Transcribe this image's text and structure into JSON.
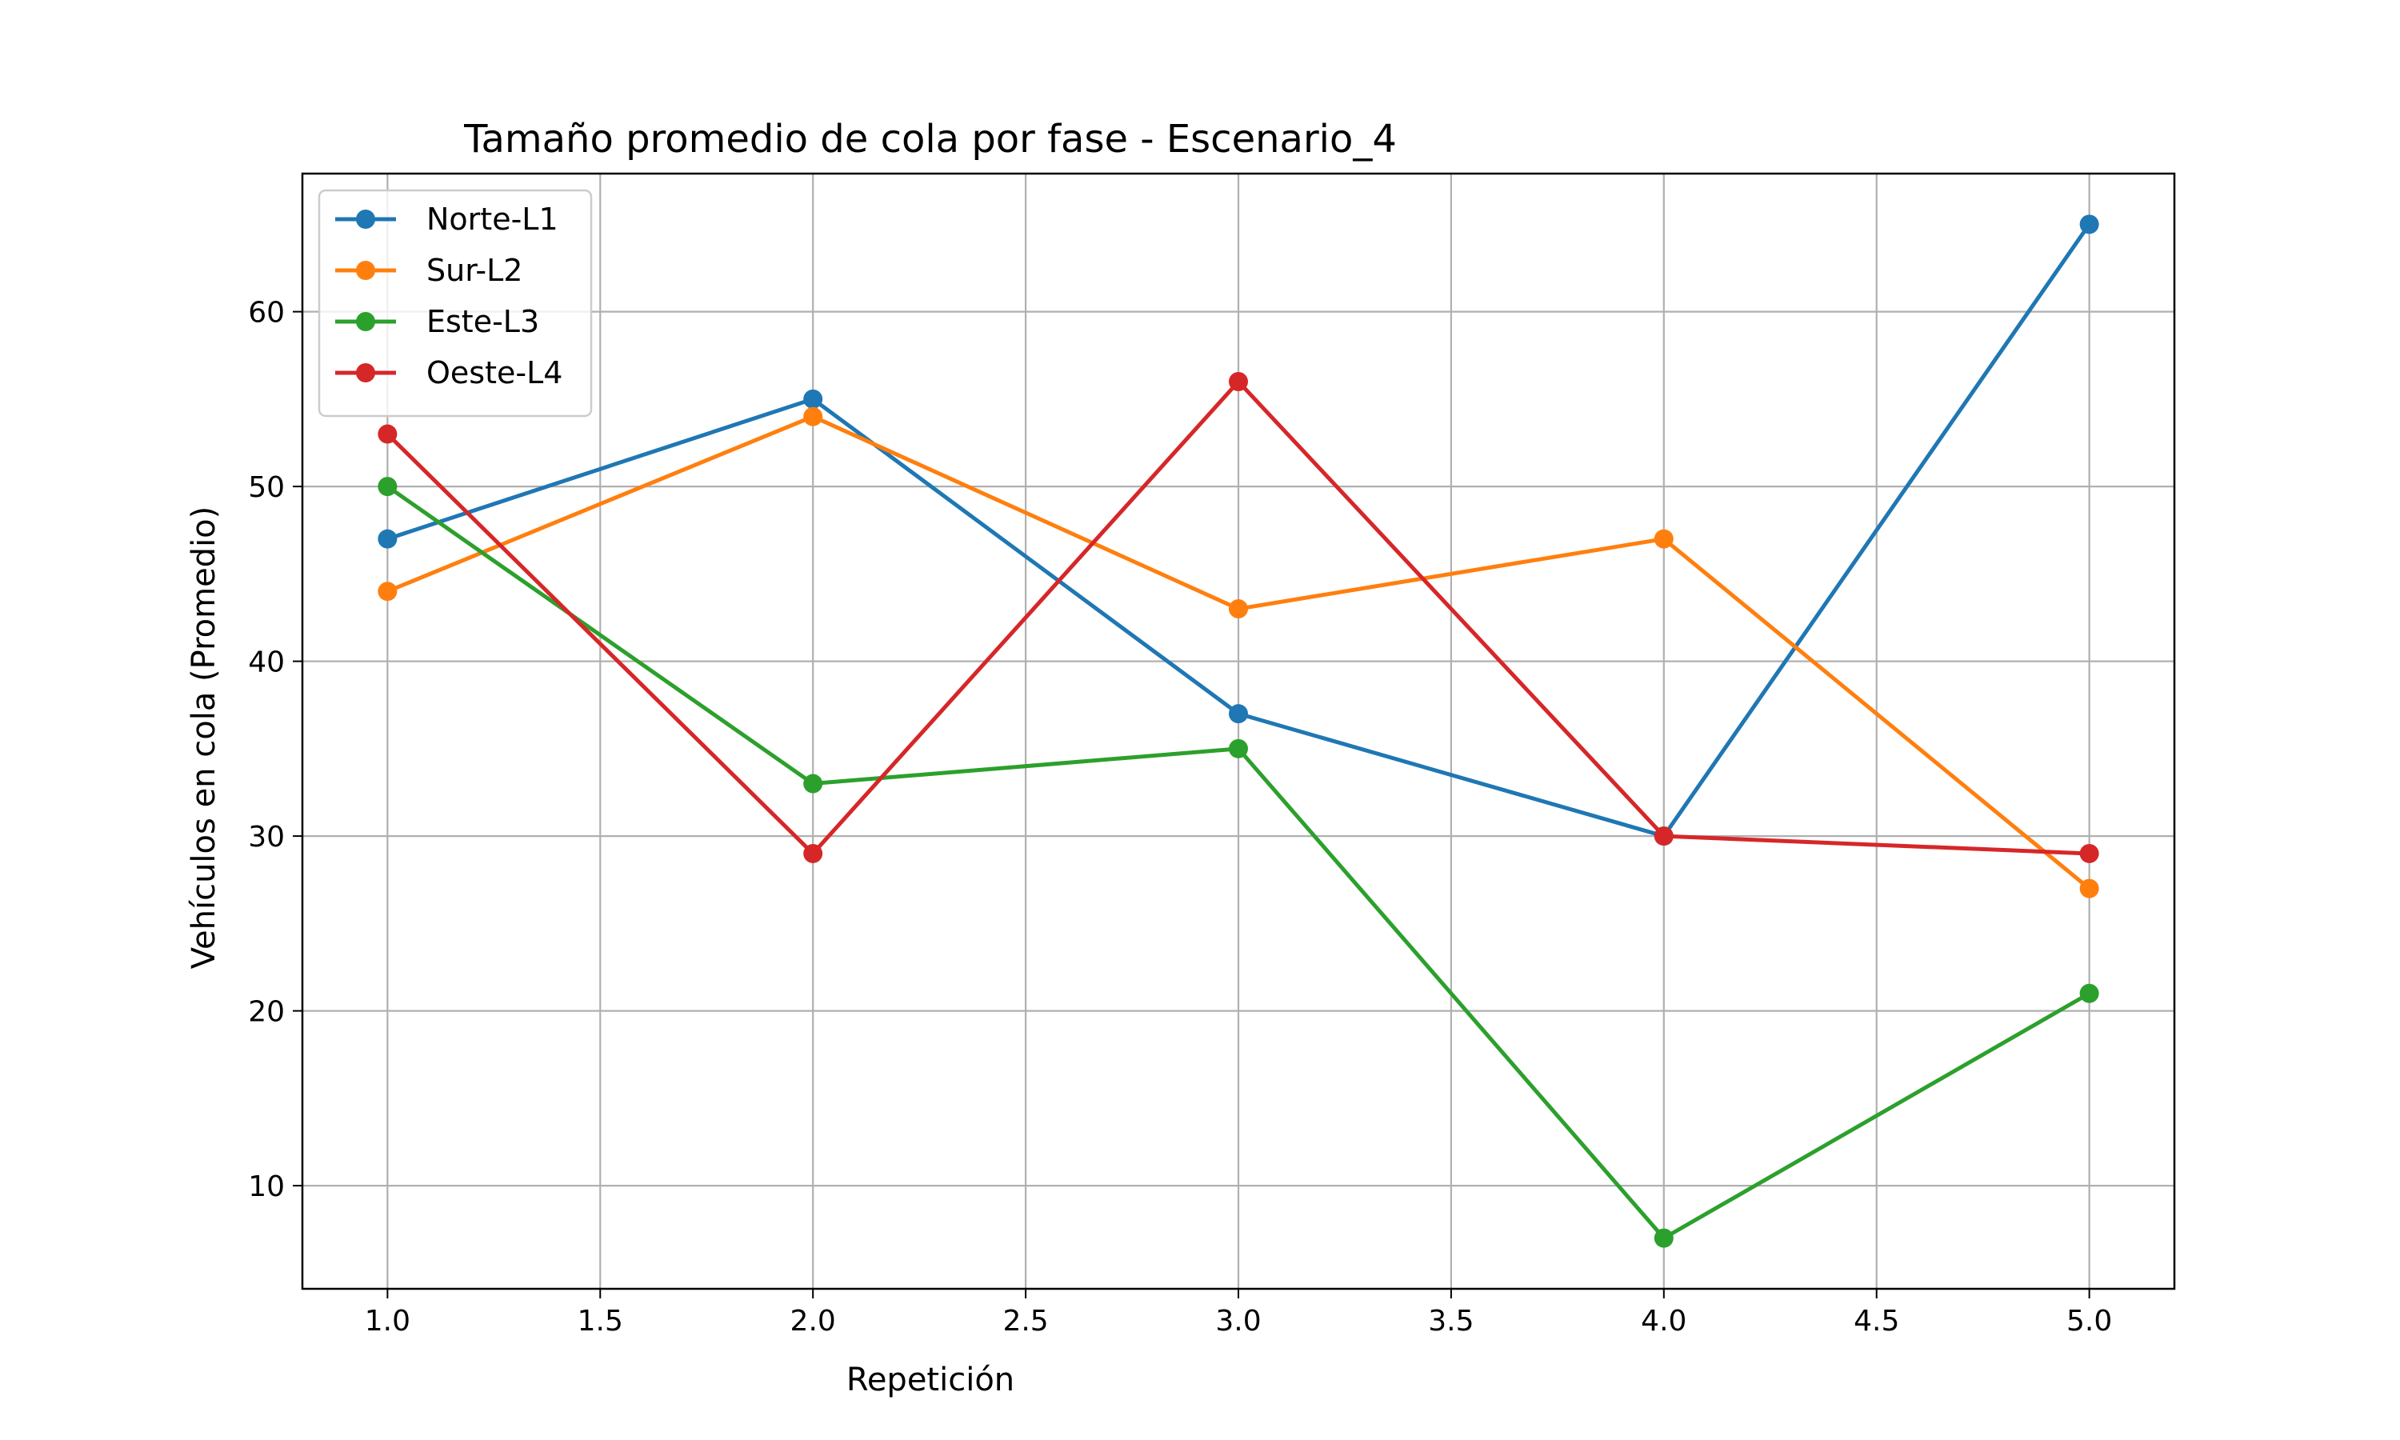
{
  "chart_data": {
    "type": "line",
    "title": "Tamaño promedio de cola por fase - Escenario_4",
    "xlabel": "Repetición",
    "ylabel": "Vehículos en cola (Promedio)",
    "x": [
      1,
      2,
      3,
      4,
      5
    ],
    "xlim": [
      0.8,
      5.2
    ],
    "ylim": [
      4.1,
      67.9
    ],
    "xticks": [
      "1.0",
      "1.5",
      "2.0",
      "2.5",
      "3.0",
      "3.5",
      "4.0",
      "4.5",
      "5.0"
    ],
    "yticks": [
      "10",
      "20",
      "30",
      "40",
      "50",
      "60"
    ],
    "grid": true,
    "legend_position": "top-left",
    "series": [
      {
        "name": "Norte-L1",
        "color": "#1f77b4",
        "marker": "circle",
        "values": [
          47,
          55,
          37,
          30,
          65
        ]
      },
      {
        "name": "Sur-L2",
        "color": "#ff7f0e",
        "marker": "circle",
        "values": [
          44,
          54,
          43,
          47,
          27
        ]
      },
      {
        "name": "Este-L3",
        "color": "#2ca02c",
        "marker": "circle",
        "values": [
          50,
          33,
          35,
          7,
          21
        ]
      },
      {
        "name": "Oeste-L4",
        "color": "#d62728",
        "marker": "circle",
        "values": [
          53,
          29,
          56,
          30,
          29
        ]
      }
    ]
  }
}
